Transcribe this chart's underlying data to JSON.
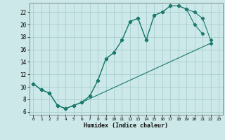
{
  "xlabel": "Humidex (Indice chaleur)",
  "bg_color": "#cce8e8",
  "line_color": "#1a7a6e",
  "grid_color": "#aacece",
  "xlim": [
    -0.5,
    23.5
  ],
  "ylim": [
    5.5,
    23.5
  ],
  "xticks": [
    0,
    1,
    2,
    3,
    4,
    5,
    6,
    7,
    8,
    9,
    10,
    11,
    12,
    13,
    14,
    15,
    16,
    17,
    18,
    19,
    20,
    21,
    22,
    23
  ],
  "yticks": [
    6,
    8,
    10,
    12,
    14,
    16,
    18,
    20,
    22
  ],
  "line1_x": [
    0,
    1,
    2,
    3,
    4,
    5,
    6,
    7,
    8,
    9,
    10,
    11,
    12,
    13,
    14,
    15,
    16,
    17,
    18,
    19,
    20,
    21
  ],
  "line1_y": [
    10.5,
    9.5,
    9.0,
    7.0,
    6.5,
    7.0,
    7.5,
    8.5,
    11.0,
    14.5,
    15.5,
    17.5,
    20.5,
    21.0,
    17.5,
    21.5,
    22.0,
    23.0,
    23.0,
    22.5,
    20.0,
    18.5
  ],
  "line2_x": [
    0,
    1,
    2,
    3,
    4,
    5,
    6,
    7,
    8,
    9,
    10,
    11,
    12,
    13,
    14,
    15,
    16,
    17,
    18,
    19,
    20,
    21,
    22
  ],
  "line2_y": [
    10.5,
    9.5,
    9.0,
    7.0,
    6.5,
    7.0,
    7.5,
    8.5,
    11.0,
    14.5,
    15.5,
    17.5,
    20.5,
    21.0,
    17.5,
    21.5,
    22.0,
    23.0,
    23.0,
    22.5,
    22.0,
    21.0,
    17.5
  ],
  "line3_x": [
    0,
    1,
    2,
    3,
    4,
    5,
    6,
    22
  ],
  "line3_y": [
    10.5,
    9.5,
    9.0,
    7.0,
    6.5,
    7.0,
    7.5,
    17.0
  ]
}
